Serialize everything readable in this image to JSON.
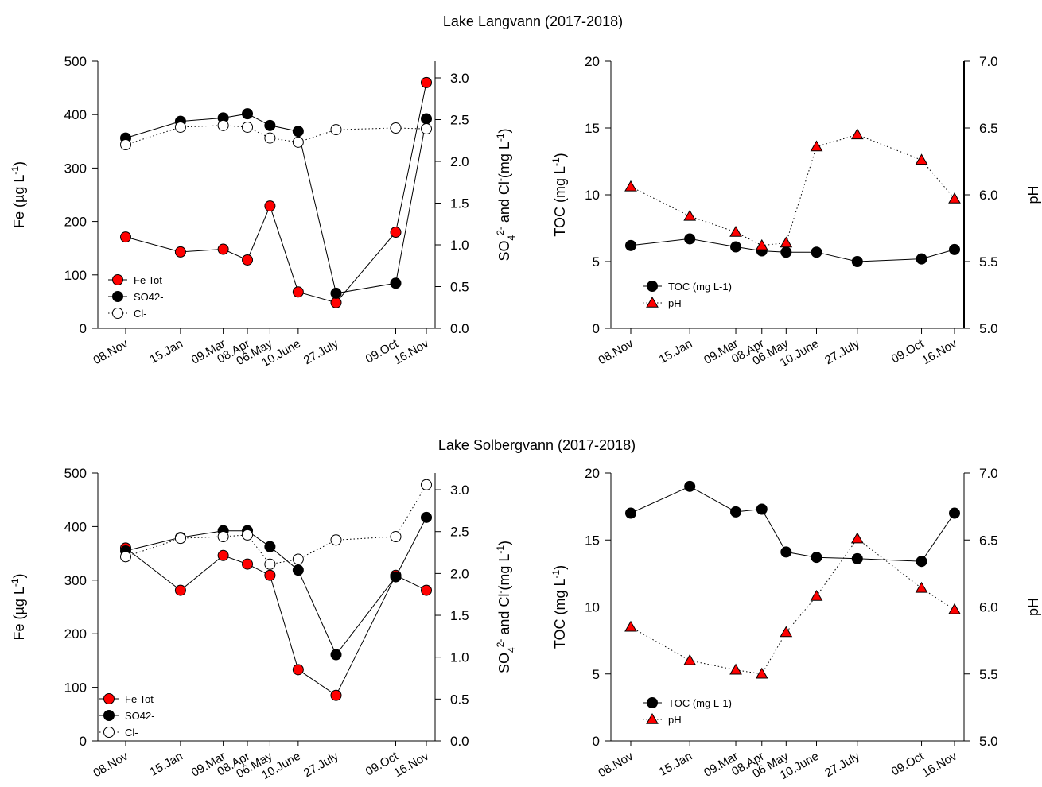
{
  "page": {
    "titles": [
      "Lake Langvann (2017-2018)",
      "Lake Solbergvann (2017-2018)"
    ]
  },
  "chart_data": [
    {
      "type": "line",
      "panel": "Lake Langvann - Fe, SO4, Cl",
      "categories": [
        "08.Nov",
        "15.Jan",
        "09.Mar",
        "08.Apr",
        "06.May",
        "10.June",
        "27.July",
        "09.Oct",
        "16.Nov"
      ],
      "x_days": [
        0,
        68,
        121,
        151,
        179,
        214,
        261,
        335,
        373
      ],
      "ylabel": "Fe (µg L-1)",
      "y2label": "SO4 2- and Cl- (mg L-1)",
      "ylim": [
        0,
        500
      ],
      "y2lim": [
        0,
        3.2
      ],
      "yticks": [
        "0",
        "100",
        "200",
        "300",
        "400",
        "500"
      ],
      "y2ticks": [
        "0.0",
        "0.5",
        "1.0",
        "1.5",
        "2.0",
        "2.5",
        "3.0"
      ],
      "legend_position": "bottom-left",
      "series": [
        {
          "name": "Fe Tot",
          "axis": "left",
          "values": [
            171,
            143,
            148,
            128,
            229,
            68,
            48,
            180,
            460
          ]
        },
        {
          "name": "SO42-",
          "axis": "right",
          "values": [
            2.28,
            2.48,
            2.52,
            2.57,
            2.43,
            2.36,
            0.42,
            0.54,
            2.51
          ]
        },
        {
          "name": "Cl-",
          "axis": "right",
          "values": [
            2.2,
            2.41,
            2.43,
            2.41,
            2.28,
            2.23,
            2.38,
            2.4,
            2.39
          ]
        }
      ]
    },
    {
      "type": "line",
      "panel": "Lake Langvann - TOC, pH",
      "categories": [
        "08.Nov",
        "15.Jan",
        "09.Mar",
        "08.Apr",
        "06.May",
        "10.June",
        "27.July",
        "09.Oct",
        "16.Nov"
      ],
      "x_days": [
        0,
        68,
        121,
        151,
        179,
        214,
        261,
        335,
        373
      ],
      "ylabel": "TOC (mg L-1)",
      "y2label": "pH",
      "ylim": [
        0,
        20
      ],
      "y2lim": [
        5.0,
        7.0
      ],
      "yticks": [
        "0",
        "5",
        "10",
        "15",
        "20"
      ],
      "y2ticks": [
        "5.0",
        "5.5",
        "6.0",
        "6.5",
        "7.0"
      ],
      "legend_position": "bottom-left",
      "series": [
        {
          "name": "TOC (mg L-1)",
          "axis": "left",
          "values": [
            6.2,
            6.7,
            6.1,
            5.8,
            5.7,
            5.7,
            5.0,
            5.2,
            5.9
          ]
        },
        {
          "name": "pH",
          "axis": "right",
          "values": [
            6.06,
            5.84,
            5.72,
            5.62,
            5.64,
            6.36,
            6.45,
            6.26,
            5.97
          ]
        }
      ]
    },
    {
      "type": "line",
      "panel": "Lake Solbergvann - Fe, SO4, Cl",
      "categories": [
        "08.Nov",
        "15.Jan",
        "09.Mar",
        "08.Apr",
        "06.May",
        "10.June",
        "27.July",
        "09.Oct",
        "16.Nov"
      ],
      "x_days": [
        0,
        68,
        121,
        151,
        179,
        214,
        261,
        335,
        373
      ],
      "ylabel": "Fe (µg L-1)",
      "y2label": "SO4 2- and Cl- (mg L-1)",
      "ylim": [
        0,
        500
      ],
      "y2lim": [
        0,
        3.2
      ],
      "yticks": [
        "0",
        "100",
        "200",
        "300",
        "400",
        "500"
      ],
      "y2ticks": [
        "0.0",
        "0.5",
        "1.0",
        "1.5",
        "2.0",
        "2.5",
        "3.0"
      ],
      "legend_position": "bottom-left",
      "series": [
        {
          "name": "Fe Tot",
          "axis": "left",
          "values": [
            360,
            281,
            346,
            330,
            309,
            133,
            85,
            309,
            281
          ]
        },
        {
          "name": "SO42-",
          "axis": "right",
          "values": [
            2.27,
            2.43,
            2.51,
            2.51,
            2.32,
            2.04,
            1.03,
            1.96,
            2.67
          ]
        },
        {
          "name": "Cl-",
          "axis": "right",
          "values": [
            2.2,
            2.42,
            2.44,
            2.46,
            2.11,
            2.17,
            2.4,
            2.44,
            3.06
          ]
        }
      ]
    },
    {
      "type": "line",
      "panel": "Lake Solbergvann - TOC, pH",
      "categories": [
        "08.Nov",
        "15.Jan",
        "09.Mar",
        "08.Apr",
        "06.May",
        "10.June",
        "27.July",
        "09.Oct",
        "16.Nov"
      ],
      "x_days": [
        0,
        68,
        121,
        151,
        179,
        214,
        261,
        335,
        373
      ],
      "ylabel": "TOC (mg L-1)",
      "y2label": "pH",
      "ylim": [
        0,
        20
      ],
      "y2lim": [
        5.0,
        7.0
      ],
      "yticks": [
        "0",
        "5",
        "10",
        "15",
        "20"
      ],
      "y2ticks": [
        "5.0",
        "5.5",
        "6.0",
        "6.5",
        "7.0"
      ],
      "legend_position": "bottom-left",
      "series": [
        {
          "name": "TOC (mg L-1)",
          "axis": "left",
          "values": [
            17.0,
            19.0,
            17.1,
            17.3,
            14.1,
            13.7,
            13.6,
            13.4,
            17.0
          ]
        },
        {
          "name": "pH",
          "axis": "right",
          "values": [
            5.85,
            5.6,
            5.53,
            5.5,
            5.81,
            6.08,
            6.51,
            6.14,
            5.98
          ]
        }
      ]
    }
  ],
  "style": {
    "fe_color": "#ff0000",
    "so4_color": "#000000",
    "cl_color": "#ffffff",
    "ph_color": "#ff0000",
    "toc_color": "#000000"
  }
}
